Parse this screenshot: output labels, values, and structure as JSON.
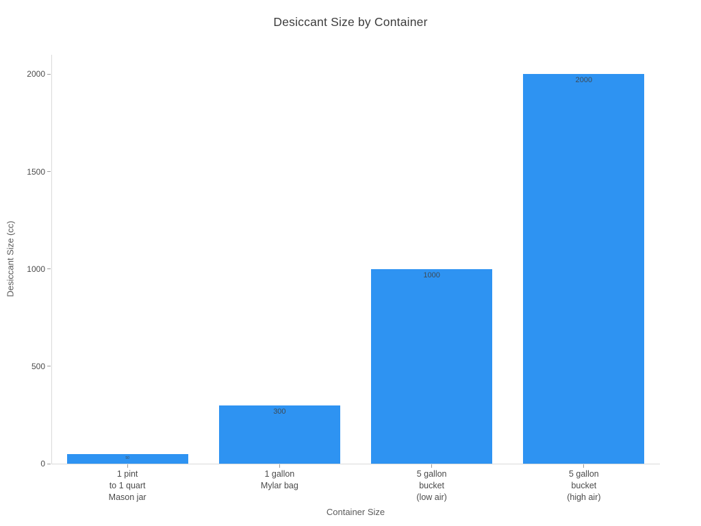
{
  "chart_data": {
    "type": "bar",
    "title": "Desiccant Size by Container",
    "xlabel": "Container Size",
    "ylabel": "Desiccant Size (cc)",
    "categories": [
      "1 pint\nto 1 quart\nMason jar",
      "1 gallon\nMylar bag",
      "5 gallon\nbucket\n(low air)",
      "5 gallon\nbucket\n(high air)"
    ],
    "values": [
      50,
      300,
      1000,
      2000
    ],
    "bar_labels": [
      "50",
      "300",
      "1000",
      "2000"
    ],
    "yticks": [
      0,
      500,
      1000,
      1500,
      2000
    ],
    "ylim": [
      0,
      2100
    ],
    "grid": false,
    "legend": false,
    "colors": {
      "bar": "#2e93f2",
      "bar_label": "#3d4a55",
      "axis_line": "#d9d9d9",
      "tick_mark": "#999999",
      "tick_label": "#4a4a4a",
      "axis_title": "#5a5a5a",
      "title": "#3c3c3c",
      "background": "#ffffff"
    }
  }
}
